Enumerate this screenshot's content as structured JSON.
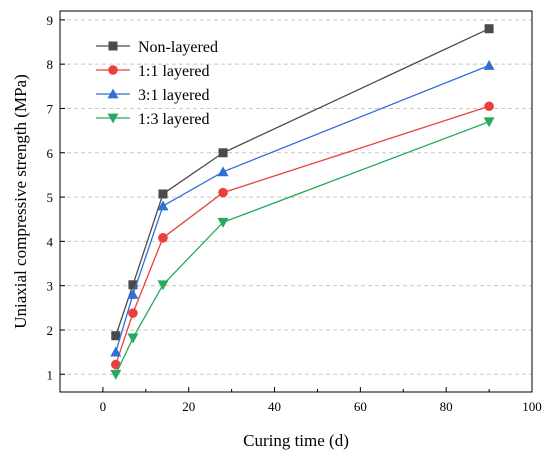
{
  "chart_data": {
    "type": "line",
    "xlabel": "Curing time (d)",
    "ylabel": "Uniaxial compressive strength (MPa)",
    "xlim": [
      -10,
      100
    ],
    "ylim": [
      0.6,
      9.2
    ],
    "x_ticks": [
      0,
      20,
      40,
      60,
      80,
      100
    ],
    "y_ticks": [
      1,
      2,
      3,
      4,
      5,
      6,
      7,
      8,
      9
    ],
    "grid": "horizontal-dashed",
    "legend_position": "top-left",
    "x": [
      3,
      7,
      14,
      28,
      90
    ],
    "series": [
      {
        "name": "Non-layered",
        "color": "#4a4a4a",
        "marker": "square",
        "values": [
          1.87,
          3.02,
          5.07,
          6.0,
          8.8
        ]
      },
      {
        "name": "1:1 layered",
        "color": "#e8413c",
        "marker": "circle",
        "values": [
          1.22,
          2.38,
          4.08,
          5.1,
          7.05
        ]
      },
      {
        "name": "3:1 layered",
        "color": "#2f6fd6",
        "marker": "triangle-up",
        "values": [
          1.5,
          2.8,
          4.8,
          5.57,
          7.97
        ]
      },
      {
        "name": "1:3 layered",
        "color": "#27a960",
        "marker": "triangle-down",
        "values": [
          1.0,
          1.82,
          3.02,
          4.43,
          6.7
        ]
      }
    ]
  }
}
